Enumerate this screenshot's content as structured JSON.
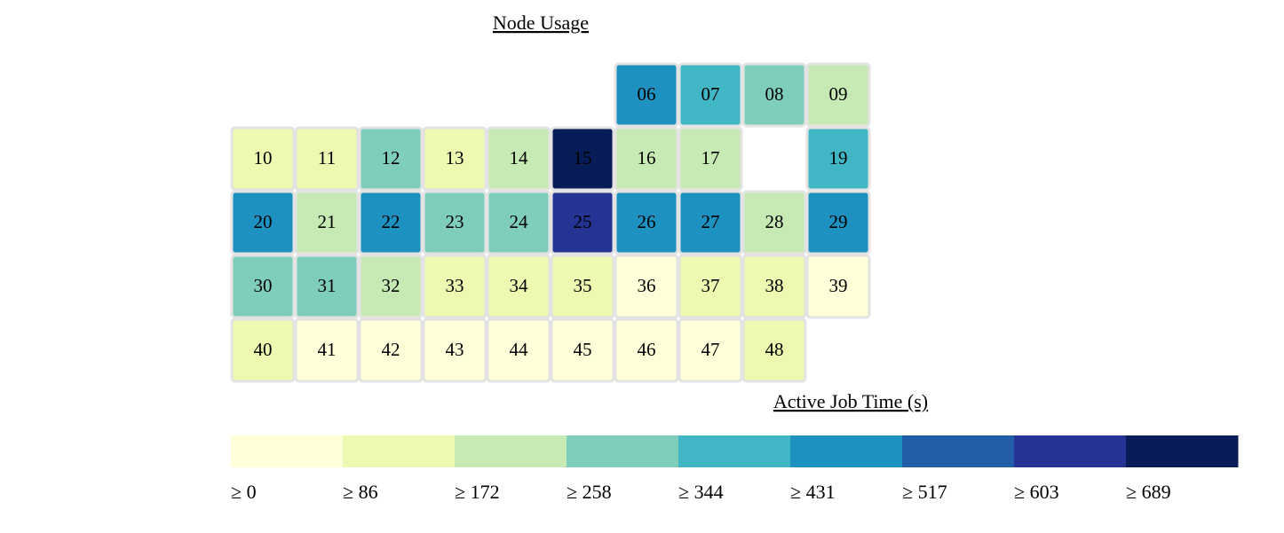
{
  "chart_data": {
    "type": "heatmap",
    "title": "Node Usage",
    "legend_title": "Active Job Time (s)",
    "legend_placement": "bottom",
    "grid": false,
    "columns": 10,
    "start_slot": 6,
    "nodes": [
      {
        "label": "06",
        "bin": 5
      },
      {
        "label": "07",
        "bin": 4
      },
      {
        "label": "08",
        "bin": 3
      },
      {
        "label": "09",
        "bin": 2
      },
      {
        "label": "10",
        "bin": 1
      },
      {
        "label": "11",
        "bin": 1
      },
      {
        "label": "12",
        "bin": 3
      },
      {
        "label": "13",
        "bin": 1
      },
      {
        "label": "14",
        "bin": 2
      },
      {
        "label": "15",
        "bin": 8
      },
      {
        "label": "16",
        "bin": 2
      },
      {
        "label": "17",
        "bin": 2
      },
      {
        "label": "",
        "bin": null
      },
      {
        "label": "19",
        "bin": 4
      },
      {
        "label": "20",
        "bin": 5
      },
      {
        "label": "21",
        "bin": 2
      },
      {
        "label": "22",
        "bin": 5
      },
      {
        "label": "23",
        "bin": 3
      },
      {
        "label": "24",
        "bin": 3
      },
      {
        "label": "25",
        "bin": 7
      },
      {
        "label": "26",
        "bin": 5
      },
      {
        "label": "27",
        "bin": 5
      },
      {
        "label": "28",
        "bin": 2
      },
      {
        "label": "29",
        "bin": 5
      },
      {
        "label": "30",
        "bin": 3
      },
      {
        "label": "31",
        "bin": 3
      },
      {
        "label": "32",
        "bin": 2
      },
      {
        "label": "33",
        "bin": 1
      },
      {
        "label": "34",
        "bin": 1
      },
      {
        "label": "35",
        "bin": 1
      },
      {
        "label": "36",
        "bin": 0
      },
      {
        "label": "37",
        "bin": 1
      },
      {
        "label": "38",
        "bin": 1
      },
      {
        "label": "39",
        "bin": 0
      },
      {
        "label": "40",
        "bin": 1
      },
      {
        "label": "41",
        "bin": 0
      },
      {
        "label": "42",
        "bin": 0
      },
      {
        "label": "43",
        "bin": 0
      },
      {
        "label": "44",
        "bin": 0
      },
      {
        "label": "45",
        "bin": 0
      },
      {
        "label": "46",
        "bin": 0
      },
      {
        "label": "47",
        "bin": 0
      },
      {
        "label": "48",
        "bin": 1
      }
    ],
    "legend": [
      {
        "label": "≥ 0",
        "threshold": 0,
        "color": "#ffffd9"
      },
      {
        "label": "≥ 86",
        "threshold": 86,
        "color": "#edf8b1"
      },
      {
        "label": "≥ 172",
        "threshold": 172,
        "color": "#c7e9b4"
      },
      {
        "label": "≥ 258",
        "threshold": 258,
        "color": "#7fcdbb"
      },
      {
        "label": "≥ 344",
        "threshold": 344,
        "color": "#41b6c4"
      },
      {
        "label": "≥ 431",
        "threshold": 431,
        "color": "#1d91c0"
      },
      {
        "label": "≥ 517",
        "threshold": 517,
        "color": "#225ea8"
      },
      {
        "label": "≥ 603",
        "threshold": 603,
        "color": "#253494"
      },
      {
        "label": "≥ 689",
        "threshold": 689,
        "color": "#081d58"
      }
    ],
    "cell_border_color": "#e3e3e3"
  }
}
